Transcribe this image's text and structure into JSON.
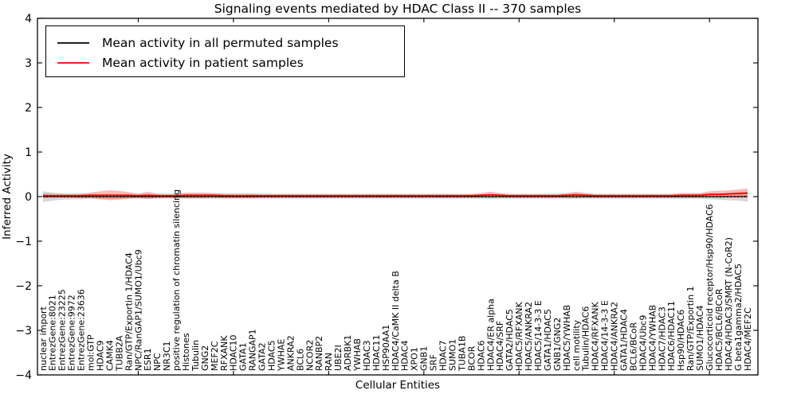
{
  "figure": {
    "title": "Signaling events mediated by HDAC Class II -- 370 samples",
    "xlabel": "Cellular Entities",
    "ylabel": "Inferred Activity"
  },
  "legend": {
    "items": [
      {
        "label": "Mean activity in all permuted samples",
        "color": "#000000"
      },
      {
        "label": "Mean activity in patient samples",
        "color": "#ff0000"
      }
    ]
  },
  "chart_data": {
    "type": "line",
    "title": "Signaling events mediated by HDAC Class II -- 370 samples",
    "xlabel": "Cellular Entities",
    "ylabel": "Inferred Activity",
    "ylim": [
      -4,
      4
    ],
    "yticks": [
      4,
      3,
      2,
      1,
      0,
      -1,
      -2,
      -3,
      -4
    ],
    "x_major_tick_every": 10,
    "grid": false,
    "legend_position": "upper left",
    "categories": [
      "nuclear import",
      "EntrezGene:8021",
      "EntrezGene:23225",
      "EntrezGene:9972",
      "EntrezGene:23636",
      "mol:GTP",
      "HDAC9",
      "CAMK4",
      "TUBB2A",
      "Ran/GTP/Exportin 1/HDAC4",
      "NPC/RanGAP1/SUMO1/Ubc9",
      "ESR1",
      "NPC",
      "NR3C1",
      "positive regulation of chromatin silencing",
      "Histones",
      "Tubulin",
      "GNG2",
      "MEF2C",
      "RFXANK",
      "HDAC10",
      "GATA1",
      "RANGAP1",
      "GATA2",
      "HDAC5",
      "YWHAE",
      "ANKRA2",
      "BCL6",
      "NCOR2",
      "RANBP2",
      "RAN",
      "UBE2I",
      "ADRBK1",
      "YWHAB",
      "HDAC3",
      "HDAC11",
      "HSP90AA1",
      "HDAC4/CaMK II delta B",
      "HDAC4",
      "XPO1",
      "GNB1",
      "SRF",
      "HDAC7",
      "SUMO1",
      "TUBA1B",
      "BCOR",
      "HDAC6",
      "HDAC4/ER alpha",
      "HDAC4/SRF",
      "GATA2/HDAC5",
      "HDAC5/RFXANK",
      "HDAC5/ANKRA2",
      "HDAC5/14-3-3 E",
      "GATA1/HDAC5",
      "GNB1/GNG2",
      "HDAC5/YWHAB",
      "cell motility",
      "Tubulin/HDAC6",
      "HDAC4/RFXANK",
      "HDAC4/14-3-3 E",
      "HDAC4/ANKRA2",
      "GATA1/HDAC4",
      "BCL6/BCoR",
      "HDAC4/Ubc9",
      "HDAC4/YWHAB",
      "HDAC7/HDAC3",
      "HDAC6/HDAC11",
      "Hsp90/HDAC6",
      "Ran/GTP/Exportin 1",
      "SUMO1/HDAC4",
      "Glucocorticoid receptor/Hsp90/HDAC6",
      "HDAC5/BCL6/BCoR",
      "HDAC4/HDAC3/SMRT (N-CoR2)",
      "G beta1gamma2/HDAC5",
      "HDAC4/MEF2C"
    ],
    "series": [
      {
        "name": "Mean activity in all permuted samples",
        "color": "#000000",
        "band_color": "rgba(120,120,120,0.30)",
        "values": [
          0,
          0,
          0,
          0,
          0,
          0,
          0,
          0,
          0,
          0,
          0,
          0,
          0,
          0,
          0,
          0,
          0,
          0,
          0,
          0,
          0,
          0,
          0,
          0,
          0,
          0,
          0,
          0,
          0,
          0,
          0,
          0,
          0,
          0,
          0,
          0,
          0,
          0,
          0,
          0,
          0,
          0,
          0,
          0,
          0,
          0,
          0,
          0,
          0,
          0,
          0,
          0,
          0,
          0,
          0,
          0,
          0,
          0,
          0,
          0,
          0,
          0,
          0,
          0,
          0,
          0,
          0,
          0,
          0,
          0,
          0,
          0,
          0,
          0,
          0
        ],
        "band_halfwidth": [
          0.12,
          0.09,
          0.07,
          0.06,
          0.06,
          0.05,
          0.05,
          0.05,
          0.05,
          0.05,
          0.05,
          0.05,
          0.05,
          0.05,
          0.05,
          0.05,
          0.05,
          0.05,
          0.05,
          0.05,
          0.05,
          0.05,
          0.05,
          0.05,
          0.05,
          0.05,
          0.05,
          0.05,
          0.05,
          0.05,
          0.05,
          0.05,
          0.05,
          0.05,
          0.05,
          0.05,
          0.05,
          0.05,
          0.05,
          0.05,
          0.05,
          0.05,
          0.05,
          0.05,
          0.05,
          0.05,
          0.05,
          0.05,
          0.05,
          0.05,
          0.05,
          0.05,
          0.05,
          0.05,
          0.05,
          0.05,
          0.05,
          0.05,
          0.05,
          0.05,
          0.05,
          0.05,
          0.05,
          0.05,
          0.05,
          0.05,
          0.05,
          0.05,
          0.05,
          0.05,
          0.06,
          0.07,
          0.08,
          0.09,
          0.11
        ]
      },
      {
        "name": "Mean activity in patient samples",
        "color": "#ff0000",
        "band_color": "rgba(255,0,0,0.28)",
        "values": [
          0.02,
          0.02,
          0.02,
          0.02,
          0.02,
          0.03,
          0.03,
          0.03,
          0.03,
          0.03,
          0.02,
          0.03,
          0.02,
          0.02,
          0.02,
          0.03,
          0.03,
          0.03,
          0.03,
          0.02,
          0.02,
          0.02,
          0.02,
          0.02,
          0.02,
          0.02,
          0.02,
          0.02,
          0.02,
          0.02,
          0.02,
          0.02,
          0.02,
          0.02,
          0.02,
          0.02,
          0.02,
          0.02,
          0.02,
          0.02,
          0.02,
          0.02,
          0.02,
          0.02,
          0.02,
          0.02,
          0.03,
          0.04,
          0.03,
          0.02,
          0.02,
          0.02,
          0.02,
          0.02,
          0.02,
          0.03,
          0.04,
          0.03,
          0.02,
          0.02,
          0.02,
          0.02,
          0.02,
          0.02,
          0.02,
          0.02,
          0.02,
          0.03,
          0.03,
          0.03,
          0.05,
          0.05,
          0.06,
          0.07,
          0.08
        ],
        "band_halfwidth": [
          0.05,
          0.04,
          0.04,
          0.04,
          0.05,
          0.06,
          0.09,
          0.11,
          0.1,
          0.07,
          0.05,
          0.08,
          0.05,
          0.04,
          0.05,
          0.06,
          0.06,
          0.06,
          0.05,
          0.05,
          0.05,
          0.05,
          0.05,
          0.04,
          0.04,
          0.04,
          0.04,
          0.04,
          0.04,
          0.04,
          0.04,
          0.04,
          0.04,
          0.04,
          0.04,
          0.04,
          0.04,
          0.04,
          0.04,
          0.04,
          0.04,
          0.04,
          0.04,
          0.04,
          0.04,
          0.04,
          0.05,
          0.07,
          0.05,
          0.04,
          0.04,
          0.04,
          0.04,
          0.04,
          0.04,
          0.05,
          0.07,
          0.05,
          0.04,
          0.04,
          0.04,
          0.04,
          0.04,
          0.04,
          0.04,
          0.04,
          0.04,
          0.05,
          0.05,
          0.05,
          0.07,
          0.08,
          0.08,
          0.09,
          0.1
        ]
      }
    ]
  }
}
